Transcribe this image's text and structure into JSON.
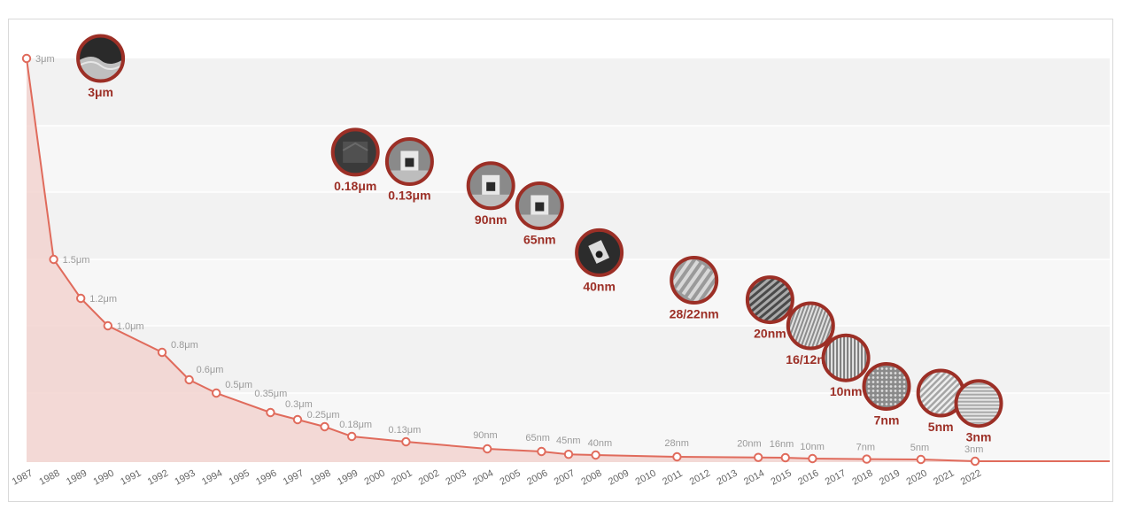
{
  "chart_data": {
    "type": "area",
    "title": "",
    "xlabel": "",
    "ylabel": "",
    "xlim": [
      1987,
      2022
    ],
    "x_ticks": [
      1987,
      1988,
      1989,
      1990,
      1991,
      1992,
      1993,
      1994,
      1995,
      1996,
      1997,
      1998,
      1999,
      2000,
      2001,
      2002,
      2003,
      2004,
      2005,
      2006,
      2007,
      2008,
      2009,
      2010,
      2011,
      2012,
      2013,
      2014,
      2015,
      2016,
      2017,
      2018,
      2019,
      2020,
      2021,
      2022
    ],
    "grid": true,
    "series": [
      {
        "points": [
          {
            "year": 1987,
            "value_um": 3.0,
            "label": "3μm"
          },
          {
            "year": 1988,
            "value_um": 1.5,
            "label": "1.5μm"
          },
          {
            "year": 1989,
            "value_um": 1.2,
            "label": "1.2μm"
          },
          {
            "year": 1990,
            "value_um": 1.0,
            "label": "1.0μm"
          },
          {
            "year": 1992,
            "value_um": 0.8,
            "label": "0.8μm"
          },
          {
            "year": 1993,
            "value_um": 0.6,
            "label": "0.6μm"
          },
          {
            "year": 1994,
            "value_um": 0.5,
            "label": "0.5μm"
          },
          {
            "year": 1996,
            "value_um": 0.35,
            "label": "0.35μm"
          },
          {
            "year": 1997,
            "value_um": 0.3,
            "label": "0.3μm"
          },
          {
            "year": 1998,
            "value_um": 0.25,
            "label": "0.25μm"
          },
          {
            "year": 1999,
            "value_um": 0.18,
            "label": "0.18μm"
          },
          {
            "year": 2001,
            "value_um": 0.13,
            "label": "0.13μm"
          },
          {
            "year": 2004,
            "value_um": 0.09,
            "label": "90nm"
          },
          {
            "year": 2006,
            "value_um": 0.065,
            "label": "65nm"
          },
          {
            "year": 2007,
            "value_um": 0.045,
            "label": "45nm"
          },
          {
            "year": 2008,
            "value_um": 0.04,
            "label": "40nm"
          },
          {
            "year": 2011,
            "value_um": 0.028,
            "label": "28nm"
          },
          {
            "year": 2014,
            "value_um": 0.02,
            "label": "20nm"
          },
          {
            "year": 2015,
            "value_um": 0.016,
            "label": "16nm"
          },
          {
            "year": 2016,
            "value_um": 0.01,
            "label": "10nm"
          },
          {
            "year": 2018,
            "value_um": 0.007,
            "label": "7nm"
          },
          {
            "year": 2020,
            "value_um": 0.005,
            "label": "5nm"
          },
          {
            "year": 2022,
            "value_um": 0.003,
            "label": "3nm"
          }
        ]
      }
    ],
    "nodes": [
      {
        "label": "3μm",
        "year": 1989.6,
        "level": 3.0,
        "pattern": "wafer"
      },
      {
        "label": "0.18μm",
        "year": 1999.0,
        "level": 2.3,
        "pattern": "dark"
      },
      {
        "label": "0.13μm",
        "year": 2001.0,
        "level": 2.23,
        "pattern": "gate"
      },
      {
        "label": "90nm",
        "year": 2004.0,
        "level": 2.05,
        "pattern": "gate"
      },
      {
        "label": "65nm",
        "year": 2005.8,
        "level": 1.9,
        "pattern": "gate"
      },
      {
        "label": "40nm",
        "year": 2008.0,
        "level": 1.55,
        "pattern": "gate-dark"
      },
      {
        "label": "28/22nm",
        "year": 2011.5,
        "level": 1.34,
        "pattern": "fins"
      },
      {
        "label": "20nm",
        "year": 2014.3,
        "level": 1.19,
        "pattern": "fins-dark"
      },
      {
        "label": "16/12nm",
        "year": 2015.8,
        "level": 1.0,
        "pattern": "lines-diag"
      },
      {
        "label": "10nm",
        "year": 2017.1,
        "level": 0.76,
        "pattern": "lines-v"
      },
      {
        "label": "7nm",
        "year": 2018.6,
        "level": 0.55,
        "pattern": "dots"
      },
      {
        "label": "5nm",
        "year": 2020.6,
        "level": 0.5,
        "pattern": "fins-light"
      },
      {
        "label": "3nm",
        "year": 2022.0,
        "level": 0.42,
        "pattern": "lines-h"
      }
    ],
    "colors": {
      "line": "#e06b5c",
      "fill": "#f2d3d0",
      "band_a": "#f2f2f2",
      "band_b": "#ffffff",
      "node_ring": "#9c2f26",
      "node_label": "#9c2f26",
      "point_label": "#9a9a9a"
    }
  }
}
